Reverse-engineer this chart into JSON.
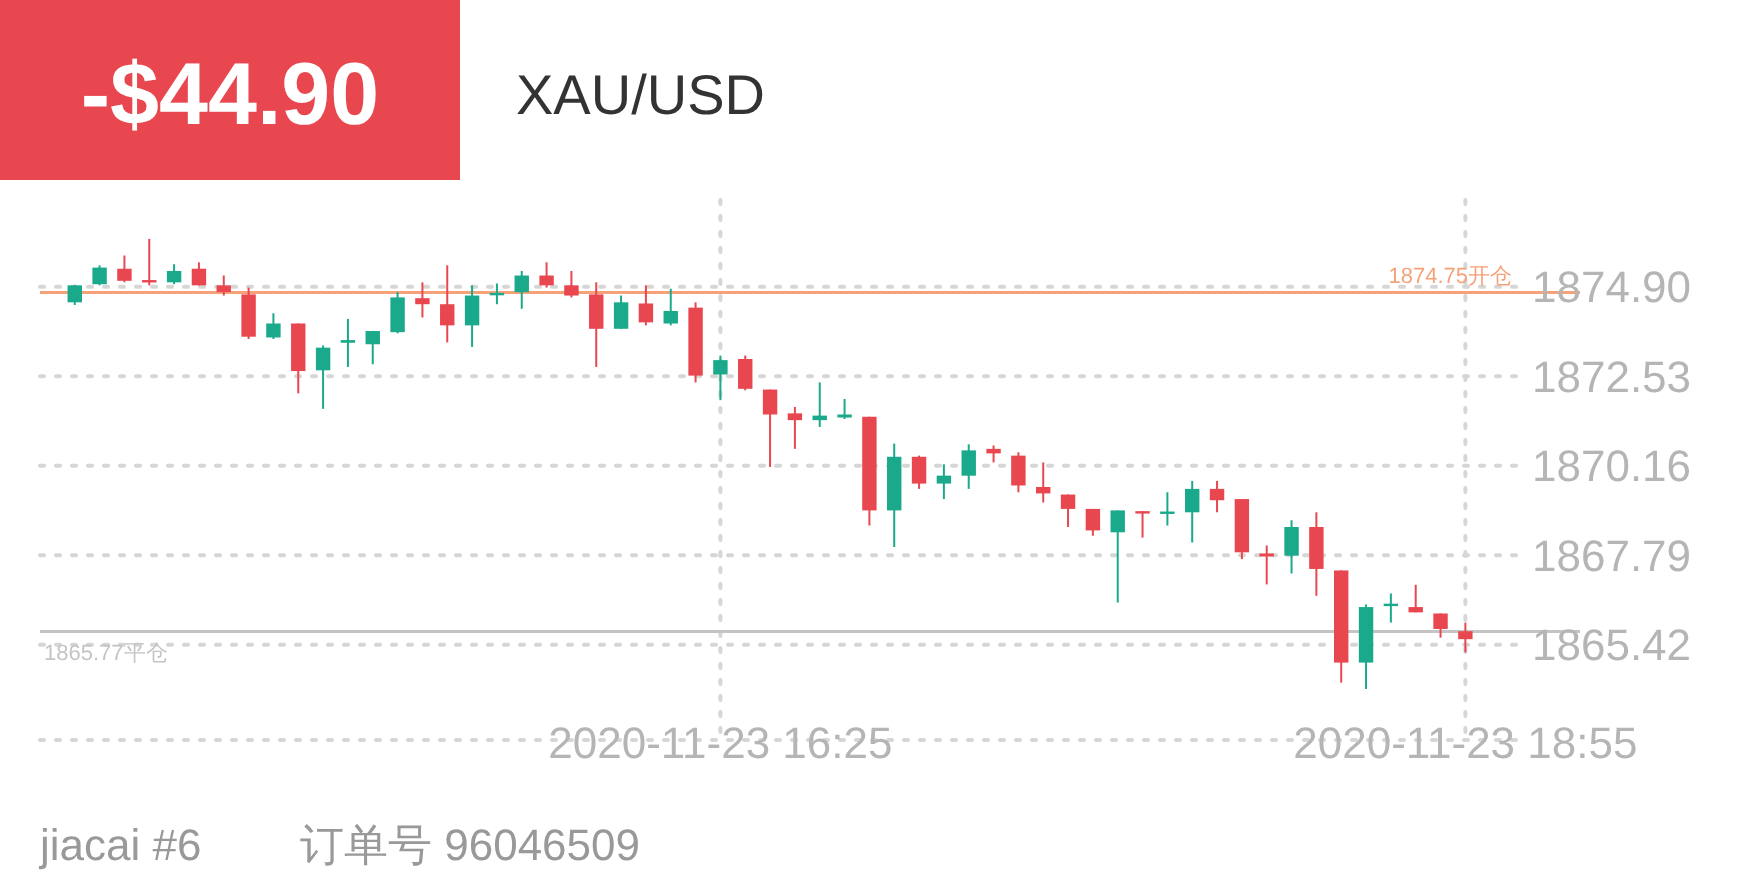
{
  "chart_data": {
    "type": "candlestick",
    "title": "XAU/USD",
    "annotations": [
      "-$44.90",
      "jiacai #6",
      "订单号 96046509"
    ],
    "x": [
      "2020-11-23T14:15",
      "2020-11-23T14:20",
      "2020-11-23T14:25",
      "2020-11-23T14:30",
      "2020-11-23T14:35",
      "2020-11-23T14:40",
      "2020-11-23T14:45",
      "2020-11-23T14:50",
      "2020-11-23T14:55",
      "2020-11-23T15:00",
      "2020-11-23T15:05",
      "2020-11-23T15:10",
      "2020-11-23T15:15",
      "2020-11-23T15:20",
      "2020-11-23T15:25",
      "2020-11-23T15:30",
      "2020-11-23T15:35",
      "2020-11-23T15:40",
      "2020-11-23T15:45",
      "2020-11-23T15:50",
      "2020-11-23T15:55",
      "2020-11-23T16:00",
      "2020-11-23T16:05",
      "2020-11-23T16:10",
      "2020-11-23T16:15",
      "2020-11-23T16:20",
      "2020-11-23T16:25",
      "2020-11-23T16:30",
      "2020-11-23T16:35",
      "2020-11-23T16:40",
      "2020-11-23T16:45",
      "2020-11-23T16:50",
      "2020-11-23T16:55",
      "2020-11-23T17:00",
      "2020-11-23T17:05",
      "2020-11-23T17:10",
      "2020-11-23T17:15",
      "2020-11-23T17:20",
      "2020-11-23T17:25",
      "2020-11-23T17:30",
      "2020-11-23T17:35",
      "2020-11-23T17:40",
      "2020-11-23T17:45",
      "2020-11-23T17:50",
      "2020-11-23T17:55",
      "2020-11-23T18:00",
      "2020-11-23T18:05",
      "2020-11-23T18:10",
      "2020-11-23T18:15",
      "2020-11-23T18:20",
      "2020-11-23T18:25",
      "2020-11-23T18:30",
      "2020-11-23T18:35",
      "2020-11-23T18:40",
      "2020-11-23T18:45",
      "2020-11-23T18:50",
      "2020-11-23T18:55"
    ],
    "ohlc": [
      [
        1874.49,
        1874.95,
        1874.42,
        1874.94
      ],
      [
        1874.97,
        1875.47,
        1874.94,
        1875.41
      ],
      [
        1875.38,
        1875.73,
        1875.02,
        1875.06
      ],
      [
        1875.08,
        1876.17,
        1874.94,
        1875.06
      ],
      [
        1875.02,
        1875.5,
        1874.97,
        1875.32
      ],
      [
        1875.38,
        1875.55,
        1874.94,
        1874.94
      ],
      [
        1874.94,
        1875.2,
        1874.67,
        1874.76
      ],
      [
        1874.7,
        1874.88,
        1873.52,
        1873.58
      ],
      [
        1873.56,
        1874.2,
        1873.52,
        1873.93
      ],
      [
        1873.93,
        1873.93,
        1872.08,
        1872.67
      ],
      [
        1872.69,
        1873.35,
        1871.67,
        1873.29
      ],
      [
        1873.42,
        1874.05,
        1872.78,
        1873.49
      ],
      [
        1873.38,
        1873.73,
        1872.85,
        1873.73
      ],
      [
        1873.7,
        1874.76,
        1873.67,
        1874.62
      ],
      [
        1874.6,
        1875.02,
        1874.09,
        1874.44
      ],
      [
        1874.44,
        1875.47,
        1873.43,
        1873.88
      ],
      [
        1873.88,
        1874.94,
        1873.31,
        1874.67
      ],
      [
        1874.7,
        1874.99,
        1874.44,
        1874.74
      ],
      [
        1874.76,
        1875.32,
        1874.32,
        1875.2
      ],
      [
        1875.2,
        1875.55,
        1874.88,
        1874.94
      ],
      [
        1874.94,
        1875.32,
        1874.62,
        1874.67
      ],
      [
        1874.7,
        1875.02,
        1872.78,
        1873.79
      ],
      [
        1873.79,
        1874.67,
        1873.79,
        1874.49
      ],
      [
        1874.46,
        1874.94,
        1873.88,
        1873.96
      ],
      [
        1873.93,
        1874.85,
        1873.88,
        1874.26
      ],
      [
        1874.35,
        1874.49,
        1872.37,
        1872.55
      ],
      [
        1872.58,
        1873.08,
        1871.9,
        1872.96
      ],
      [
        1872.99,
        1873.08,
        1872.16,
        1872.2
      ],
      [
        1872.18,
        1872.18,
        1870.13,
        1871.52
      ],
      [
        1871.55,
        1871.72,
        1870.61,
        1871.37
      ],
      [
        1871.37,
        1872.37,
        1871.19,
        1871.49
      ],
      [
        1871.44,
        1871.93,
        1871.4,
        1871.52
      ],
      [
        1871.46,
        1871.46,
        1868.58,
        1868.98
      ],
      [
        1868.98,
        1870.75,
        1868.01,
        1870.4
      ],
      [
        1870.4,
        1870.43,
        1869.55,
        1869.69
      ],
      [
        1869.69,
        1870.2,
        1869.28,
        1869.9
      ],
      [
        1869.9,
        1870.73,
        1869.55,
        1870.57
      ],
      [
        1870.61,
        1870.7,
        1870.25,
        1870.49
      ],
      [
        1870.43,
        1870.52,
        1869.46,
        1869.64
      ],
      [
        1869.6,
        1870.25,
        1869.19,
        1869.43
      ],
      [
        1869.4,
        1869.4,
        1868.54,
        1869.02
      ],
      [
        1869.02,
        1869.02,
        1868.31,
        1868.45
      ],
      [
        1868.4,
        1868.98,
        1866.54,
        1868.98
      ],
      [
        1868.96,
        1868.96,
        1868.26,
        1868.91
      ],
      [
        1868.91,
        1869.46,
        1868.58,
        1868.95
      ],
      [
        1868.93,
        1869.76,
        1868.13,
        1869.55
      ],
      [
        1869.55,
        1869.76,
        1868.93,
        1869.25
      ],
      [
        1869.28,
        1869.28,
        1867.69,
        1867.87
      ],
      [
        1867.84,
        1868.05,
        1867.02,
        1867.76
      ],
      [
        1867.78,
        1868.72,
        1867.31,
        1868.54
      ],
      [
        1868.54,
        1868.93,
        1866.72,
        1867.43
      ],
      [
        1867.39,
        1867.39,
        1864.42,
        1864.95
      ],
      [
        1864.95,
        1866.49,
        1864.25,
        1866.42
      ],
      [
        1866.47,
        1866.78,
        1866.01,
        1866.51
      ],
      [
        1866.42,
        1867.01,
        1866.28,
        1866.28
      ],
      [
        1866.25,
        1866.25,
        1865.61,
        1865.84
      ],
      [
        1865.78,
        1866.01,
        1865.22,
        1865.57
      ]
    ],
    "colors": [
      "#1aa98a",
      "#1aa98a",
      "#e8474f",
      "#e8474f",
      "#1aa98a",
      "#e8474f",
      "#e8474f",
      "#e8474f",
      "#1aa98a",
      "#e8474f",
      "#1aa98a",
      "#1aa98a",
      "#1aa98a",
      "#1aa98a",
      "#e8474f",
      "#e8474f",
      "#1aa98a",
      "#1aa98a",
      "#1aa98a",
      "#e8474f",
      "#e8474f",
      "#e8474f",
      "#1aa98a",
      "#e8474f",
      "#1aa98a",
      "#e8474f",
      "#1aa98a",
      "#e8474f",
      "#e8474f",
      "#e8474f",
      "#1aa98a",
      "#1aa98a",
      "#e8474f",
      "#1aa98a",
      "#e8474f",
      "#1aa98a",
      "#1aa98a",
      "#e8474f",
      "#e8474f",
      "#e8474f",
      "#e8474f",
      "#e8474f",
      "#1aa98a",
      "#e8474f",
      "#1aa98a",
      "#1aa98a",
      "#e8474f",
      "#e8474f",
      "#e8474f",
      "#1aa98a",
      "#e8474f",
      "#e8474f",
      "#1aa98a",
      "#1aa98a",
      "#e8474f",
      "#e8474f",
      "#e8474f"
    ],
    "xlim": [
      "2020-11-23T14:08",
      "2020-11-23T19:06"
    ],
    "xticks": [
      {
        "value": "2020-11-23T16:25",
        "label": "2020-11-23 16:25"
      },
      {
        "value": "2020-11-23T18:55",
        "label": "2020-11-23 18:55"
      }
    ],
    "ylim": [
      1862.9,
      1877.2
    ],
    "yticks": [
      1865.42,
      1867.79,
      1870.16,
      1872.53,
      {
        "value": 1874.9,
        "label": "1874.90"
      }
    ],
    "grid": true,
    "ref_lines": [
      {
        "axis": "y",
        "value": 1874.75,
        "label": "1874.75开仓",
        "color": "#f5a27a"
      },
      {
        "axis": "y",
        "value": 1865.77,
        "label": "1865.77平仓",
        "color": "#c4c4c4"
      }
    ]
  }
}
